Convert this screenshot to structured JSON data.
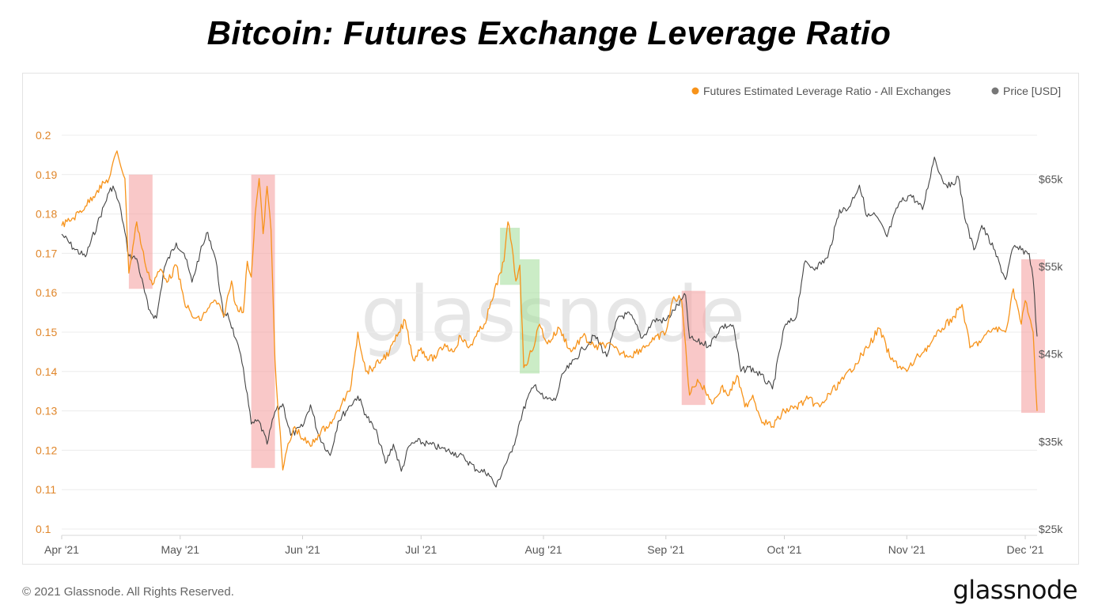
{
  "title": "Bitcoin: Futures Exchange Leverage Ratio",
  "footer": {
    "copyright": "© 2021 Glassnode. All Rights Reserved.",
    "brand": "glassnode"
  },
  "watermark": "glassnode",
  "colors": {
    "leverage": "#f7931a",
    "price": "#444444",
    "red_zone": "#f5a3a3",
    "green_zone": "#a8dfa0",
    "left_axis_text": "#e0862a",
    "right_axis_text": "#555555",
    "grid": "#ececec"
  },
  "chart_data": {
    "type": "line",
    "title": "Bitcoin: Futures Exchange Leverage Ratio",
    "x_ticks": [
      "Apr '21",
      "May '21",
      "Jun '21",
      "Jul '21",
      "Aug '21",
      "Sep '21",
      "Oct '21",
      "Nov '21",
      "Dec '21"
    ],
    "x_range": [
      "2021-04-01",
      "2021-12-04"
    ],
    "y_left": {
      "ticks": [
        "0.1",
        "0.11",
        "0.12",
        "0.13",
        "0.14",
        "0.15",
        "0.16",
        "0.17",
        "0.18",
        "0.19",
        "0.2"
      ],
      "range": [
        0.1,
        0.2
      ]
    },
    "y_right": {
      "ticks": [
        "$25k",
        "$35k",
        "$45k",
        "$55k",
        "$65k"
      ],
      "range": [
        25000,
        70000
      ]
    },
    "grid": true,
    "legend_position": "top-right",
    "series": [
      {
        "name": "Futures Estimated Leverage Ratio - All Exchanges",
        "axis": "left",
        "points": [
          [
            "2021-04-01",
            0.177
          ],
          [
            "2021-04-04",
            0.179
          ],
          [
            "2021-04-07",
            0.182
          ],
          [
            "2021-04-10",
            0.186
          ],
          [
            "2021-04-13",
            0.189
          ],
          [
            "2021-04-15",
            0.196
          ],
          [
            "2021-04-17",
            0.189
          ],
          [
            "2021-04-18",
            0.165
          ],
          [
            "2021-04-20",
            0.178
          ],
          [
            "2021-04-22",
            0.168
          ],
          [
            "2021-04-24",
            0.162
          ],
          [
            "2021-04-26",
            0.166
          ],
          [
            "2021-04-28",
            0.163
          ],
          [
            "2021-04-30",
            0.167
          ],
          [
            "2021-05-02",
            0.158
          ],
          [
            "2021-05-04",
            0.154
          ],
          [
            "2021-05-06",
            0.153
          ],
          [
            "2021-05-08",
            0.156
          ],
          [
            "2021-05-10",
            0.158
          ],
          [
            "2021-05-12",
            0.154
          ],
          [
            "2021-05-14",
            0.163
          ],
          [
            "2021-05-15",
            0.157
          ],
          [
            "2021-05-17",
            0.155
          ],
          [
            "2021-05-18",
            0.168
          ],
          [
            "2021-05-19",
            0.164
          ],
          [
            "2021-05-20",
            0.18
          ],
          [
            "2021-05-21",
            0.189
          ],
          [
            "2021-05-22",
            0.175
          ],
          [
            "2021-05-23",
            0.187
          ],
          [
            "2021-05-24",
            0.176
          ],
          [
            "2021-05-25",
            0.143
          ],
          [
            "2021-05-26",
            0.128
          ],
          [
            "2021-05-27",
            0.115
          ],
          [
            "2021-05-28",
            0.12
          ],
          [
            "2021-05-30",
            0.126
          ],
          [
            "2021-06-01",
            0.123
          ],
          [
            "2021-06-03",
            0.121
          ],
          [
            "2021-06-05",
            0.124
          ],
          [
            "2021-06-07",
            0.126
          ],
          [
            "2021-06-09",
            0.128
          ],
          [
            "2021-06-11",
            0.132
          ],
          [
            "2021-06-13",
            0.135
          ],
          [
            "2021-06-15",
            0.15
          ],
          [
            "2021-06-17",
            0.14
          ],
          [
            "2021-06-19",
            0.141
          ],
          [
            "2021-06-21",
            0.143
          ],
          [
            "2021-06-23",
            0.145
          ],
          [
            "2021-06-25",
            0.149
          ],
          [
            "2021-06-27",
            0.153
          ],
          [
            "2021-06-29",
            0.143
          ],
          [
            "2021-07-01",
            0.146
          ],
          [
            "2021-07-03",
            0.143
          ],
          [
            "2021-07-05",
            0.144
          ],
          [
            "2021-07-07",
            0.147
          ],
          [
            "2021-07-09",
            0.145
          ],
          [
            "2021-07-11",
            0.149
          ],
          [
            "2021-07-13",
            0.146
          ],
          [
            "2021-07-15",
            0.149
          ],
          [
            "2021-07-17",
            0.152
          ],
          [
            "2021-07-19",
            0.158
          ],
          [
            "2021-07-21",
            0.165
          ],
          [
            "2021-07-22",
            0.168
          ],
          [
            "2021-07-23",
            0.178
          ],
          [
            "2021-07-24",
            0.172
          ],
          [
            "2021-07-25",
            0.163
          ],
          [
            "2021-07-26",
            0.167
          ],
          [
            "2021-07-27",
            0.141
          ],
          [
            "2021-07-29",
            0.145
          ],
          [
            "2021-07-31",
            0.152
          ],
          [
            "2021-08-02",
            0.147
          ],
          [
            "2021-08-05",
            0.151
          ],
          [
            "2021-08-08",
            0.145
          ],
          [
            "2021-08-11",
            0.149
          ],
          [
            "2021-08-14",
            0.146
          ],
          [
            "2021-08-17",
            0.147
          ],
          [
            "2021-08-20",
            0.145
          ],
          [
            "2021-08-23",
            0.144
          ],
          [
            "2021-08-26",
            0.146
          ],
          [
            "2021-08-29",
            0.148
          ],
          [
            "2021-09-01",
            0.15
          ],
          [
            "2021-09-03",
            0.159
          ],
          [
            "2021-09-05",
            0.158
          ],
          [
            "2021-09-07",
            0.134
          ],
          [
            "2021-09-09",
            0.138
          ],
          [
            "2021-09-11",
            0.135
          ],
          [
            "2021-09-13",
            0.132
          ],
          [
            "2021-09-15",
            0.136
          ],
          [
            "2021-09-17",
            0.134
          ],
          [
            "2021-09-19",
            0.139
          ],
          [
            "2021-09-21",
            0.131
          ],
          [
            "2021-09-23",
            0.134
          ],
          [
            "2021-09-25",
            0.128
          ],
          [
            "2021-09-28",
            0.126
          ],
          [
            "2021-10-01",
            0.13
          ],
          [
            "2021-10-04",
            0.131
          ],
          [
            "2021-10-07",
            0.133
          ],
          [
            "2021-10-10",
            0.131
          ],
          [
            "2021-10-13",
            0.135
          ],
          [
            "2021-10-16",
            0.138
          ],
          [
            "2021-10-19",
            0.142
          ],
          [
            "2021-10-22",
            0.146
          ],
          [
            "2021-10-25",
            0.151
          ],
          [
            "2021-10-28",
            0.143
          ],
          [
            "2021-11-01",
            0.14
          ],
          [
            "2021-11-04",
            0.144
          ],
          [
            "2021-11-07",
            0.147
          ],
          [
            "2021-11-10",
            0.151
          ],
          [
            "2021-11-13",
            0.154
          ],
          [
            "2021-11-15",
            0.157
          ],
          [
            "2021-11-17",
            0.146
          ],
          [
            "2021-11-20",
            0.148
          ],
          [
            "2021-11-23",
            0.151
          ],
          [
            "2021-11-26",
            0.15
          ],
          [
            "2021-11-28",
            0.161
          ],
          [
            "2021-11-30",
            0.152
          ],
          [
            "2021-12-01",
            0.158
          ],
          [
            "2021-12-02",
            0.154
          ],
          [
            "2021-12-03",
            0.15
          ],
          [
            "2021-12-04",
            0.13
          ]
        ]
      },
      {
        "name": "Price [USD]",
        "axis": "right",
        "points": [
          [
            "2021-04-01",
            58700
          ],
          [
            "2021-04-04",
            57100
          ],
          [
            "2021-04-07",
            56100
          ],
          [
            "2021-04-10",
            59800
          ],
          [
            "2021-04-13",
            63500
          ],
          [
            "2021-04-14",
            64200
          ],
          [
            "2021-04-16",
            61400
          ],
          [
            "2021-04-18",
            56200
          ],
          [
            "2021-04-20",
            55900
          ],
          [
            "2021-04-23",
            50100
          ],
          [
            "2021-04-25",
            49100
          ],
          [
            "2021-04-27",
            54900
          ],
          [
            "2021-04-30",
            57700
          ],
          [
            "2021-05-02",
            56500
          ],
          [
            "2021-05-04",
            53200
          ],
          [
            "2021-05-06",
            56500
          ],
          [
            "2021-05-08",
            58900
          ],
          [
            "2021-05-10",
            55800
          ],
          [
            "2021-05-12",
            49200
          ],
          [
            "2021-05-13",
            49700
          ],
          [
            "2021-05-15",
            46800
          ],
          [
            "2021-05-17",
            43400
          ],
          [
            "2021-05-19",
            37000
          ],
          [
            "2021-05-21",
            37300
          ],
          [
            "2021-05-23",
            34700
          ],
          [
            "2021-05-25",
            38400
          ],
          [
            "2021-05-27",
            39300
          ],
          [
            "2021-05-29",
            35700
          ],
          [
            "2021-06-01",
            36700
          ],
          [
            "2021-06-03",
            39200
          ],
          [
            "2021-06-05",
            35800
          ],
          [
            "2021-06-08",
            33400
          ],
          [
            "2021-06-10",
            37300
          ],
          [
            "2021-06-13",
            39100
          ],
          [
            "2021-06-15",
            40200
          ],
          [
            "2021-06-17",
            38100
          ],
          [
            "2021-06-20",
            35700
          ],
          [
            "2021-06-22",
            32500
          ],
          [
            "2021-06-24",
            34700
          ],
          [
            "2021-06-26",
            31600
          ],
          [
            "2021-06-28",
            34500
          ],
          [
            "2021-06-30",
            35000
          ],
          [
            "2021-07-03",
            34700
          ],
          [
            "2021-07-06",
            34200
          ],
          [
            "2021-07-09",
            33800
          ],
          [
            "2021-07-12",
            33100
          ],
          [
            "2021-07-15",
            31800
          ],
          [
            "2021-07-18",
            31400
          ],
          [
            "2021-07-20",
            29800
          ],
          [
            "2021-07-22",
            32100
          ],
          [
            "2021-07-24",
            33800
          ],
          [
            "2021-07-26",
            37300
          ],
          [
            "2021-07-28",
            40000
          ],
          [
            "2021-07-30",
            41500
          ],
          [
            "2021-08-01",
            39900
          ],
          [
            "2021-08-04",
            39700
          ],
          [
            "2021-08-06",
            42800
          ],
          [
            "2021-08-08",
            43800
          ],
          [
            "2021-08-11",
            45600
          ],
          [
            "2021-08-14",
            47100
          ],
          [
            "2021-08-17",
            44700
          ],
          [
            "2021-08-20",
            49300
          ],
          [
            "2021-08-23",
            49500
          ],
          [
            "2021-08-26",
            46800
          ],
          [
            "2021-08-29",
            48900
          ],
          [
            "2021-09-01",
            48800
          ],
          [
            "2021-09-03",
            50000
          ],
          [
            "2021-09-06",
            51700
          ],
          [
            "2021-09-07",
            46800
          ],
          [
            "2021-09-09",
            46400
          ],
          [
            "2021-09-12",
            46000
          ],
          [
            "2021-09-15",
            48100
          ],
          [
            "2021-09-18",
            48300
          ],
          [
            "2021-09-20",
            43000
          ],
          [
            "2021-09-22",
            43500
          ],
          [
            "2021-09-25",
            42600
          ],
          [
            "2021-09-28",
            41000
          ],
          [
            "2021-10-01",
            48100
          ],
          [
            "2021-10-04",
            49200
          ],
          [
            "2021-10-06",
            55300
          ],
          [
            "2021-10-09",
            54900
          ],
          [
            "2021-10-12",
            56000
          ],
          [
            "2021-10-15",
            61500
          ],
          [
            "2021-10-17",
            61500
          ],
          [
            "2021-10-20",
            64300
          ],
          [
            "2021-10-22",
            60700
          ],
          [
            "2021-10-24",
            60900
          ],
          [
            "2021-10-27",
            58400
          ],
          [
            "2021-10-30",
            62200
          ],
          [
            "2021-11-02",
            63200
          ],
          [
            "2021-11-05",
            61500
          ],
          [
            "2021-11-08",
            67500
          ],
          [
            "2021-11-10",
            64900
          ],
          [
            "2021-11-12",
            64100
          ],
          [
            "2021-11-14",
            65300
          ],
          [
            "2021-11-16",
            60000
          ],
          [
            "2021-11-18",
            56900
          ],
          [
            "2021-11-20",
            59700
          ],
          [
            "2021-11-23",
            57000
          ],
          [
            "2021-11-26",
            53500
          ],
          [
            "2021-11-28",
            57200
          ],
          [
            "2021-11-30",
            56900
          ],
          [
            "2021-12-02",
            56500
          ],
          [
            "2021-12-03",
            53600
          ],
          [
            "2021-12-04",
            47000
          ]
        ]
      }
    ],
    "highlight_zones": [
      {
        "color": "red",
        "from": "2021-04-18",
        "to": "2021-04-24",
        "y_from": 0.161,
        "y_to": 0.19
      },
      {
        "color": "red",
        "from": "2021-05-19",
        "to": "2021-05-25",
        "y_from": 0.1155,
        "y_to": 0.19
      },
      {
        "color": "green",
        "from": "2021-07-21",
        "to": "2021-07-26",
        "y_from": 0.162,
        "y_to": 0.1765
      },
      {
        "color": "green",
        "from": "2021-07-26",
        "to": "2021-07-31",
        "y_from": 0.1395,
        "y_to": 0.1685
      },
      {
        "color": "red",
        "from": "2021-09-05",
        "to": "2021-09-11",
        "y_from": 0.1315,
        "y_to": 0.1605
      },
      {
        "color": "red",
        "from": "2021-11-30",
        "to": "2021-12-06",
        "y_from": 0.1295,
        "y_to": 0.1685
      }
    ]
  }
}
